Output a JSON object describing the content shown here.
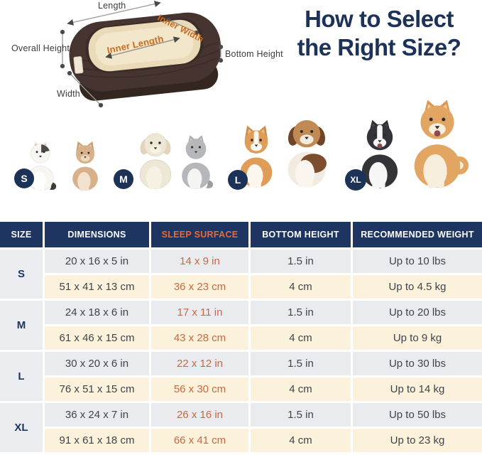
{
  "title": {
    "line1": "How to Select",
    "line2": "the Right Size?"
  },
  "diagram": {
    "labels": {
      "length": "Length",
      "overall_height": "Overall Height",
      "width": "Width",
      "bottom_height": "Bottom Height",
      "inner_length": "Inner Length",
      "inner_width": "Inner Width"
    }
  },
  "size_groups": [
    {
      "badge": "S",
      "animals": [
        "white-cat",
        "chihuahua"
      ]
    },
    {
      "badge": "M",
      "animals": [
        "maltese-dog",
        "gray-cat"
      ]
    },
    {
      "badge": "L",
      "animals": [
        "corgi",
        "beagle"
      ]
    },
    {
      "badge": "XL",
      "animals": [
        "border-collie",
        "shiba-inu"
      ]
    }
  ],
  "table": {
    "headers": [
      "SIZE",
      "DIMENSIONS",
      "SLEEP SURFACE",
      "BOTTOM HEIGHT",
      "RECOMMENDED WEIGHT"
    ],
    "groups": [
      {
        "size": "S",
        "rows": [
          [
            "20 x 16 x 5 in",
            "14 x 9 in",
            "1.5 in",
            "Up to 10 lbs"
          ],
          [
            "51 x 41 x 13 cm",
            "36 x 23 cm",
            "4 cm",
            "Up to 4.5 kg"
          ]
        ]
      },
      {
        "size": "M",
        "rows": [
          [
            "24 x 18 x 6 in",
            "17 x 11 in",
            "1.5 in",
            "Up to 20 lbs"
          ],
          [
            "61 x 46 x 15 cm",
            "43 x 28 cm",
            "4 cm",
            "Up to 9 kg"
          ]
        ]
      },
      {
        "size": "L",
        "rows": [
          [
            "30 x 20 x 6 in",
            "22 x 12 in",
            "1.5 in",
            "Up to 30 lbs"
          ],
          [
            "76 x 51 x 15 cm",
            "56 x 30 cm",
            "4 cm",
            "Up to 14 kg"
          ]
        ]
      },
      {
        "size": "XL",
        "rows": [
          [
            "36 x 24 x 7 in",
            "26 x 16 in",
            "1.5 in",
            "Up to 50 lbs"
          ],
          [
            "91 x 61 x 18 cm",
            "66 x 41 cm",
            "4 cm",
            "Up to 23 kg"
          ]
        ]
      }
    ]
  },
  "colors": {
    "navy": "#1d3560",
    "title_navy": "#1c3259",
    "header_orange": "#f0682e",
    "cell_orange": "#c86942",
    "row_gray": "#e9ebee",
    "row_cream": "#fcf1da",
    "size_col_gray": "#ecedf0",
    "bed_brown": "#463430",
    "cushion_cream": "#f1e3c6"
  }
}
